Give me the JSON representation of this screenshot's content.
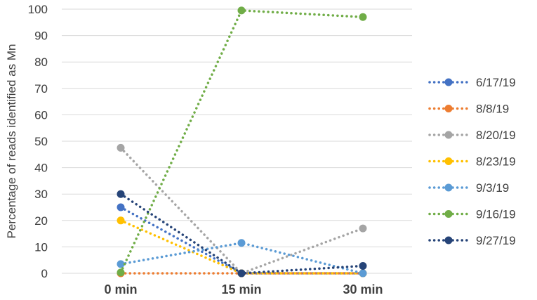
{
  "chart_data": {
    "type": "line",
    "title": "",
    "xlabel": "",
    "ylabel": "Percentage of reads identified as Mn",
    "categories": [
      "0 min",
      "15 min",
      "30 min"
    ],
    "ylim": [
      0,
      100
    ],
    "yticks": [
      0,
      10,
      20,
      30,
      40,
      50,
      60,
      70,
      80,
      90,
      100
    ],
    "grid": true,
    "legend_position": "right",
    "line_style": "dotted",
    "series": [
      {
        "name": "6/17/19",
        "color": "#4472C4",
        "values": [
          25,
          0,
          0
        ]
      },
      {
        "name": "8/8/19",
        "color": "#ED7D31",
        "values": [
          0,
          0,
          0
        ]
      },
      {
        "name": "8/20/19",
        "color": "#A5A5A5",
        "values": [
          47.5,
          0,
          17
        ]
      },
      {
        "name": "8/23/19",
        "color": "#FFC000",
        "values": [
          20,
          0,
          0
        ]
      },
      {
        "name": "9/3/19",
        "color": "#5B9BD5",
        "values": [
          3.5,
          11.5,
          0
        ]
      },
      {
        "name": "9/16/19",
        "color": "#70AD47",
        "values": [
          0.3,
          99.5,
          97
        ]
      },
      {
        "name": "9/27/19",
        "color": "#264478",
        "values": [
          30,
          0,
          2.8
        ]
      }
    ]
  }
}
